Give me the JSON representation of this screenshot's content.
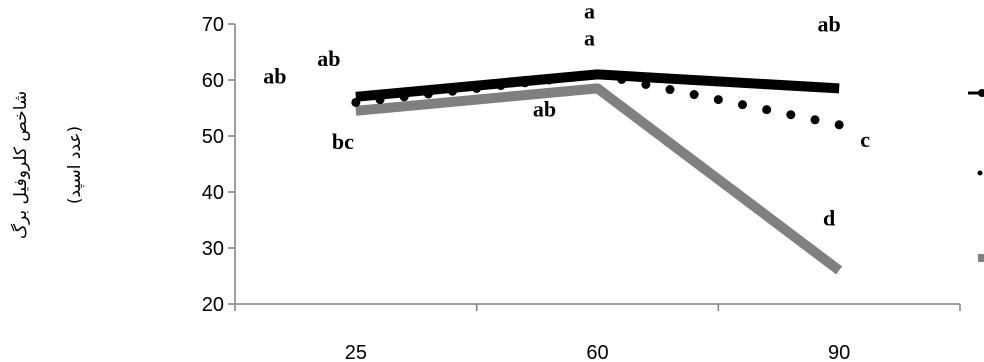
{
  "chart_data": {
    "type": "line",
    "x": [
      25,
      60,
      90
    ],
    "x_tick_labels": [
      "25",
      "60",
      "90"
    ],
    "y_tick_labels": [
      "20",
      "30",
      "40",
      "50",
      "60",
      "70"
    ],
    "ylim": [
      20,
      70
    ],
    "ylabel_lines": [
      "شاخص کلروفیل برگ",
      "(عدد اسپد)"
    ],
    "xlabel": "",
    "grid": false,
    "series": [
      {
        "values": [
          57,
          61,
          58.5
        ],
        "color": "#000000",
        "style": "solid",
        "labels": [
          "ab",
          "a",
          "ab"
        ]
      },
      {
        "values": [
          56,
          61,
          52
        ],
        "color": "#000000",
        "style": "dotted",
        "labels": [
          "ab",
          "a",
          "c"
        ]
      },
      {
        "values": [
          54.5,
          58.5,
          26
        ],
        "color": "#808080",
        "style": "solid",
        "labels": [
          "bc",
          "ab",
          "d"
        ]
      }
    ],
    "legend": {
      "position": "right"
    }
  }
}
